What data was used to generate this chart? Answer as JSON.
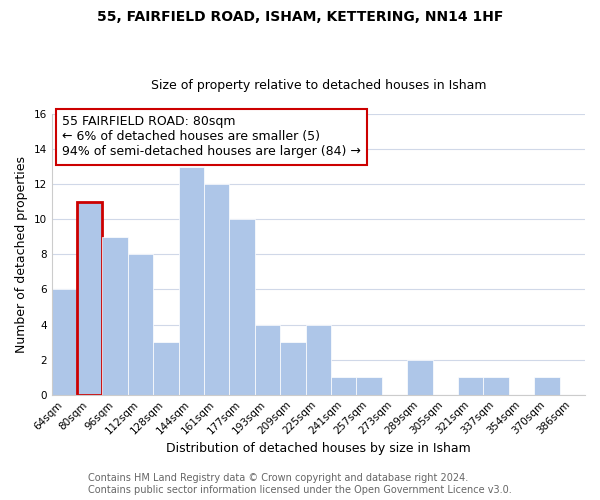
{
  "title": "55, FAIRFIELD ROAD, ISHAM, KETTERING, NN14 1HF",
  "subtitle": "Size of property relative to detached houses in Isham",
  "xlabel": "Distribution of detached houses by size in Isham",
  "ylabel": "Number of detached properties",
  "bin_labels": [
    "64sqm",
    "80sqm",
    "96sqm",
    "112sqm",
    "128sqm",
    "144sqm",
    "161sqm",
    "177sqm",
    "193sqm",
    "209sqm",
    "225sqm",
    "241sqm",
    "257sqm",
    "273sqm",
    "289sqm",
    "305sqm",
    "321sqm",
    "337sqm",
    "354sqm",
    "370sqm",
    "386sqm"
  ],
  "bar_heights": [
    6,
    11,
    9,
    8,
    3,
    13,
    12,
    10,
    4,
    3,
    4,
    1,
    1,
    0,
    2,
    0,
    1,
    1,
    0,
    1,
    0
  ],
  "highlight_bar_index": 1,
  "bar_color": "#aec6e8",
  "highlight_bar_edge_color": "#cc0000",
  "highlight_bar_linewidth": 2.0,
  "annotation_text": "55 FAIRFIELD ROAD: 80sqm\n← 6% of detached houses are smaller (5)\n94% of semi-detached houses are larger (84) →",
  "annotation_box_edgecolor": "#cc0000",
  "annotation_box_facecolor": "#ffffff",
  "ylim": [
    0,
    16
  ],
  "yticks": [
    0,
    2,
    4,
    6,
    8,
    10,
    12,
    14,
    16
  ],
  "footer_line1": "Contains HM Land Registry data © Crown copyright and database right 2024.",
  "footer_line2": "Contains public sector information licensed under the Open Government Licence v3.0.",
  "bg_color": "#ffffff",
  "grid_color": "#d0d8e8",
  "title_fontsize": 10,
  "subtitle_fontsize": 9,
  "axis_label_fontsize": 9,
  "tick_fontsize": 7.5,
  "footer_fontsize": 7,
  "annotation_fontsize": 9
}
